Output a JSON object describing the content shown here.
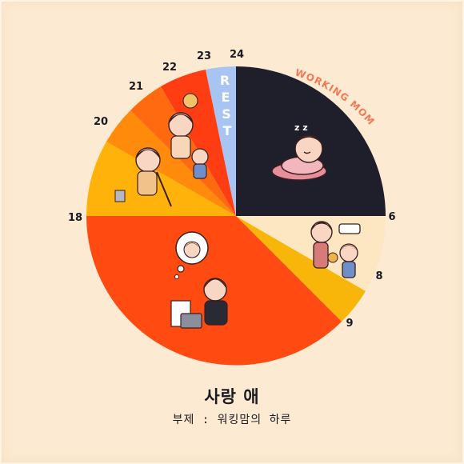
{
  "title": "사랑 애",
  "subtitle": "부제 : 워킹맘의 하루",
  "clock": {
    "hour_labels": [
      "6",
      "8",
      "9",
      "18",
      "20",
      "21",
      "22",
      "23",
      "24"
    ],
    "rest_label": "REST",
    "arc_label": "WORKING MOM",
    "colors": {
      "background": "#fcebd2",
      "sleep": "#1f1e2b",
      "morning": "#fde7c2",
      "commute": "#f8b60b",
      "work": "#ff4a12",
      "evening_1": "#ffb20a",
      "evening_2": "#ff8a0c",
      "evening_3": "#ff6a10",
      "evening_4": "#ff3d12",
      "rest": "#a8c4f2",
      "accent_text": "#f07a55"
    }
  }
}
